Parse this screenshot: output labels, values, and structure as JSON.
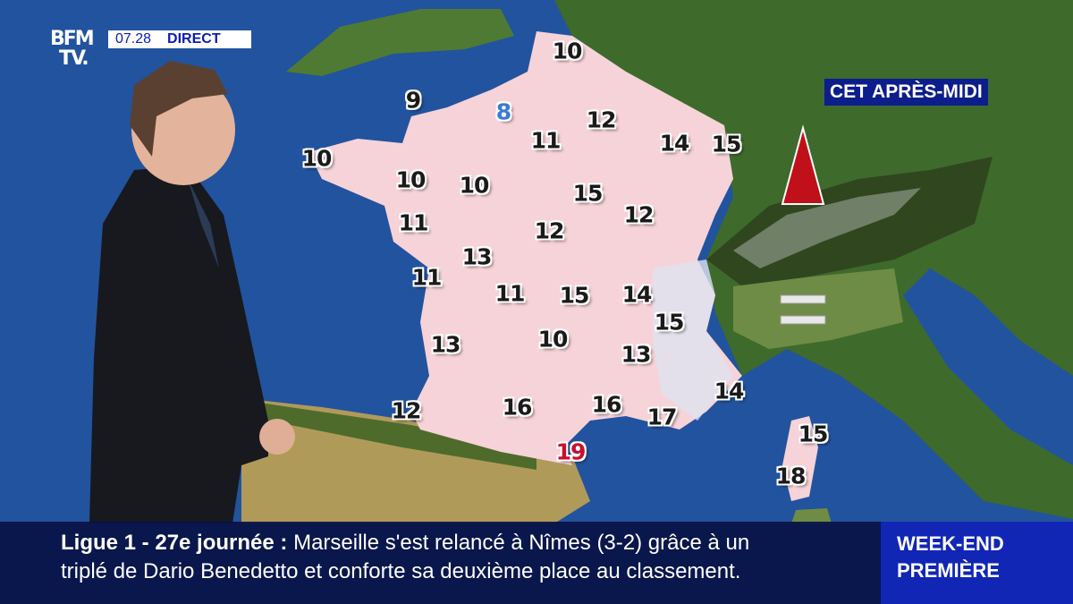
{
  "channel": {
    "logo_line1": "BFM",
    "logo_line2": "TV.",
    "time": "07.28",
    "live_label": "DIRECT"
  },
  "map": {
    "period_label": "CET APRÈS-MIDI",
    "sea_color": "#1f4f9a",
    "land_france_color": "#f6d3d8",
    "temperatures": [
      {
        "value": "10"
      },
      {
        "value": "9"
      },
      {
        "value": "8",
        "color": "#3a7ad8"
      },
      {
        "value": "12"
      },
      {
        "value": "11"
      },
      {
        "value": "14"
      },
      {
        "value": "15"
      },
      {
        "value": "10"
      },
      {
        "value": "10"
      },
      {
        "value": "10"
      },
      {
        "value": "15"
      },
      {
        "value": "12"
      },
      {
        "value": "11"
      },
      {
        "value": "12"
      },
      {
        "value": "13"
      },
      {
        "value": "11"
      },
      {
        "value": "11"
      },
      {
        "value": "15"
      },
      {
        "value": "14"
      },
      {
        "value": "15"
      },
      {
        "value": "13"
      },
      {
        "value": "10"
      },
      {
        "value": "13"
      },
      {
        "value": "14"
      },
      {
        "value": "12"
      },
      {
        "value": "16"
      },
      {
        "value": "16"
      },
      {
        "value": "17"
      },
      {
        "value": "19",
        "color": "#c8102e"
      },
      {
        "value": "15"
      },
      {
        "value": "18"
      }
    ],
    "symbols": [
      {
        "icon": "trend-up-triangle-icon",
        "color": "#c0101a"
      },
      {
        "icon": "stable-equals-icon",
        "color": "#e8e8e8"
      }
    ]
  },
  "ticker": {
    "topic": "Ligue 1 - 27e journée",
    "separator": ":",
    "line1": "Marseille s'est relancé à Nîmes (3-2) grâce à un",
    "line2": "triplé de Dario Benedetto et conforte sa deuxième place au classement."
  },
  "show": {
    "line1": "WEEK-END",
    "line2": "PREMIÈRE"
  }
}
